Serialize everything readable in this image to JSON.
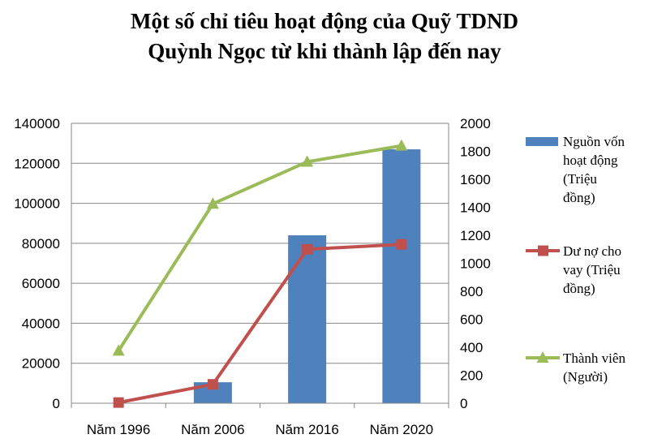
{
  "chart_data": {
    "type": "bar+line",
    "title_lines": [
      "Một số chỉ tiêu hoạt động của Quỹ TDND",
      "Quỳnh Ngọc từ khi thành lập đến nay"
    ],
    "categories": [
      "Năm 1996",
      "Năm 2006",
      "Năm 2016",
      "Năm 2020"
    ],
    "y_left": {
      "min": 0,
      "max": 140000,
      "step": 20000,
      "ticks": [
        "0",
        "20000",
        "40000",
        "60000",
        "80000",
        "100000",
        "120000",
        "140000"
      ]
    },
    "y_right": {
      "min": 0,
      "max": 2000,
      "step": 200,
      "ticks": [
        "0",
        "200",
        "400",
        "600",
        "800",
        "1000",
        "1200",
        "1400",
        "1600",
        "1800",
        "2000"
      ]
    },
    "grid": true,
    "legend_position": "right",
    "series": [
      {
        "name_lines": [
          "Nguồn vốn",
          "hoạt động",
          "(Triệu",
          "đồng)"
        ],
        "kind": "bar",
        "axis": "left",
        "color": "#4F81BD",
        "values": [
          0,
          10500,
          84000,
          127000
        ]
      },
      {
        "name_lines": [
          "Dư nợ cho",
          "vay (Triệu",
          "đồng)"
        ],
        "kind": "line",
        "axis": "right",
        "color": "#C0504D",
        "marker": "square",
        "values": [
          5,
          135,
          1100,
          1135
        ]
      },
      {
        "name_lines": [
          "Thành viên",
          "(Người)"
        ],
        "kind": "line",
        "axis": "right",
        "color": "#9BBB59",
        "marker": "triangle",
        "values": [
          375,
          1425,
          1725,
          1840
        ]
      }
    ]
  }
}
